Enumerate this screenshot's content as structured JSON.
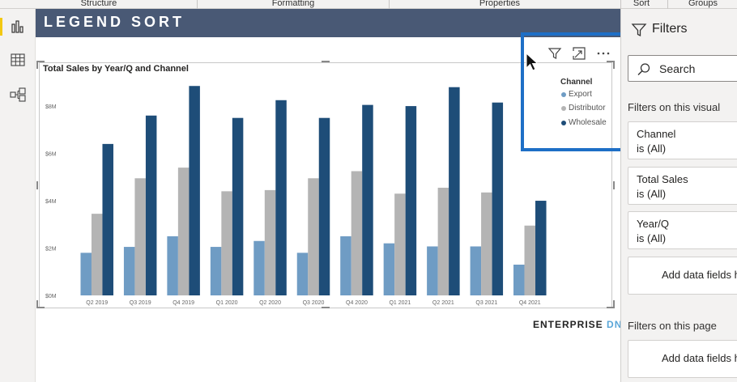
{
  "ribbon": {
    "tabs": [
      "Structure",
      "Formatting",
      "Properties",
      "Sort",
      "Groups"
    ]
  },
  "page": {
    "title": "LEGEND SORT"
  },
  "visual": {
    "title": "Total Sales by Year/Q and Channel"
  },
  "legend": {
    "title": "Channel",
    "items": [
      "Export",
      "Distributor",
      "Wholesale"
    ]
  },
  "chart_data": {
    "type": "bar",
    "title": "Total Sales by Year/Q and Channel",
    "categories": [
      "Q2 2019",
      "Q3 2019",
      "Q4 2019",
      "Q1 2020",
      "Q2 2020",
      "Q3 2020",
      "Q4 2020",
      "Q1 2021",
      "Q2 2021",
      "Q3 2021",
      "Q4 2021"
    ],
    "series": [
      {
        "name": "Export",
        "color": "#6f9cc4",
        "values": [
          1.8,
          2.05,
          2.5,
          2.05,
          2.3,
          1.8,
          2.5,
          2.2,
          2.07,
          2.07,
          1.3
        ]
      },
      {
        "name": "Distributor",
        "color": "#b4b4b4",
        "values": [
          3.45,
          4.95,
          5.4,
          4.4,
          4.45,
          4.95,
          5.25,
          4.3,
          4.55,
          4.35,
          2.95
        ]
      },
      {
        "name": "Wholesale",
        "color": "#1e4d78",
        "values": [
          6.4,
          7.6,
          8.85,
          7.5,
          8.25,
          7.5,
          8.05,
          8.0,
          8.8,
          8.15,
          4.0
        ]
      }
    ],
    "yticks": [
      "$0M",
      "$2M",
      "$4M",
      "$6M",
      "$8M"
    ],
    "ylim": [
      0,
      9.2
    ],
    "legend_position": "top-right",
    "grid": false
  },
  "branding": {
    "brand": "ENTERPRISE",
    "brand_suffix": "DNA"
  },
  "filters": {
    "title": "Filters",
    "search_placeholder": "Search",
    "on_visual_label": "Filters on this visual",
    "cards": [
      {
        "name": "Channel",
        "state": "is (All)"
      },
      {
        "name": "Total Sales",
        "state": "is (All)"
      },
      {
        "name": "Year/Q",
        "state": "is (All)"
      }
    ],
    "add_fields": "Add data fields h",
    "on_page_label": "Filters on this page",
    "add_fields_page": "Add data fields h"
  },
  "colors": {
    "title_bar": "#495975",
    "highlight": "#1e6fc6"
  }
}
